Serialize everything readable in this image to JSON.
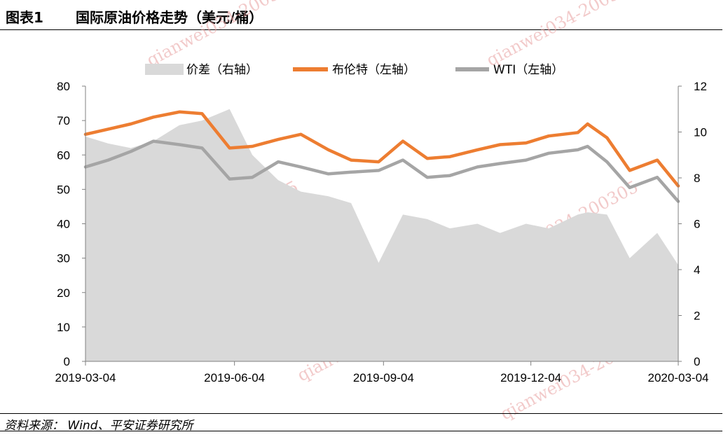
{
  "header": {
    "figure_label": "图表1",
    "title": "国际原油价格走势（美元/桶）"
  },
  "source": "资料来源：  Wind、平安证券研究所",
  "watermark": "qianwei034-200305",
  "colors": {
    "brent": "#ED7D31",
    "wti": "#A5A5A5",
    "spread": "#D9D9D9"
  },
  "chart_data": {
    "type": "line",
    "title": "国际原油价格走势（美元/桶）",
    "legend_position": "top",
    "x_tick_labels": [
      "2019-03-04",
      "2019-06-04",
      "2019-09-04",
      "2019-12-04",
      "2020-03-04"
    ],
    "y_left": {
      "min": 0,
      "max": 80,
      "ticks": [
        0,
        10,
        20,
        30,
        40,
        50,
        60,
        70,
        80
      ]
    },
    "y_right": {
      "min": 0,
      "max": 12,
      "ticks": [
        0,
        2,
        4,
        6,
        8,
        10,
        12
      ]
    },
    "x": [
      "2019-03-04",
      "2019-03-18",
      "2019-04-01",
      "2019-04-15",
      "2019-05-01",
      "2019-05-15",
      "2019-06-01",
      "2019-06-15",
      "2019-07-01",
      "2019-07-15",
      "2019-08-01",
      "2019-08-15",
      "2019-09-01",
      "2019-09-16",
      "2019-10-01",
      "2019-10-15",
      "2019-11-01",
      "2019-11-15",
      "2019-12-01",
      "2019-12-15",
      "2020-01-02",
      "2020-01-08",
      "2020-01-20",
      "2020-02-03",
      "2020-02-20",
      "2020-03-04"
    ],
    "series": [
      {
        "name": "价差（右轴）",
        "axis": "right",
        "type": "area",
        "values": [
          9.8,
          9.5,
          9.3,
          9.6,
          10.3,
          10.5,
          11.0,
          9.0,
          7.9,
          7.4,
          7.2,
          6.9,
          4.3,
          6.4,
          6.2,
          5.8,
          6.0,
          5.6,
          6.0,
          5.8,
          6.4,
          6.5,
          6.4,
          4.5,
          5.6,
          4.2
        ]
      },
      {
        "name": "布伦特（左轴）",
        "axis": "left",
        "type": "line",
        "values": [
          66.0,
          67.5,
          69.0,
          71.0,
          72.5,
          72.0,
          62.0,
          62.5,
          64.5,
          66.0,
          61.5,
          58.5,
          58.0,
          64.0,
          59.0,
          59.5,
          61.5,
          63.0,
          63.5,
          65.5,
          66.5,
          69.0,
          65.0,
          55.5,
          58.5,
          51.0
        ]
      },
      {
        "name": "WTI（左轴）",
        "axis": "left",
        "type": "line",
        "values": [
          56.5,
          58.5,
          61.0,
          64.0,
          63.0,
          62.0,
          53.0,
          53.5,
          58.0,
          56.5,
          54.5,
          55.0,
          55.5,
          58.5,
          53.5,
          54.0,
          56.5,
          57.5,
          58.5,
          60.5,
          61.5,
          62.5,
          58.0,
          50.5,
          53.5,
          46.5
        ]
      }
    ]
  }
}
